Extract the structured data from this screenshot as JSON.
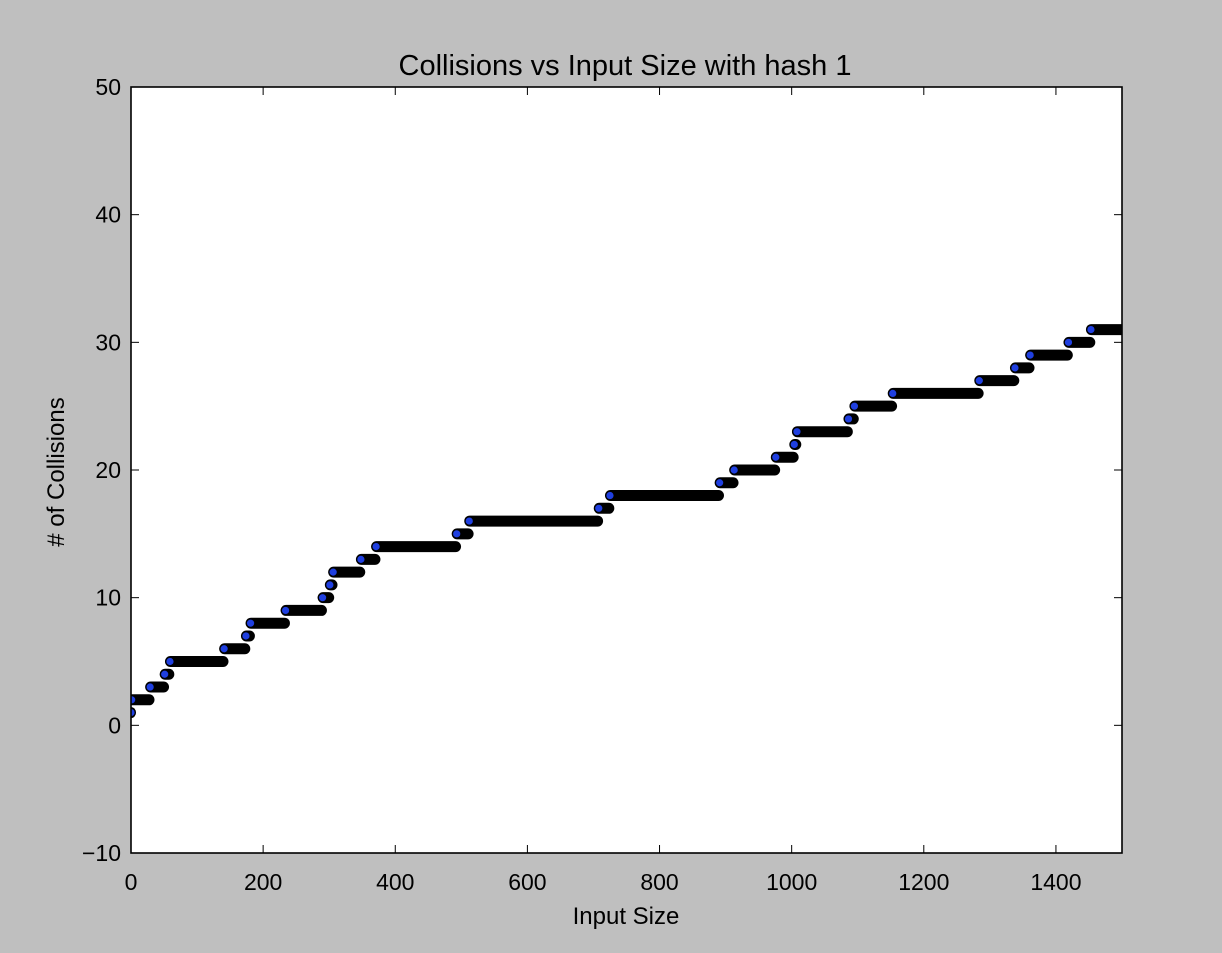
{
  "chart_data": {
    "type": "scatter",
    "title": "Collisions vs Input Size with hash 1",
    "xlabel": "Input Size",
    "ylabel": "# of Collisions",
    "xlim": [
      0,
      1500
    ],
    "ylim": [
      -10,
      50
    ],
    "xticks": [
      0,
      200,
      400,
      600,
      800,
      1000,
      1200,
      1400
    ],
    "yticks": [
      -10,
      0,
      10,
      20,
      30,
      40,
      50
    ],
    "grid": false,
    "legend": "none",
    "marker_color": "#1f3fe0",
    "marker_edge_color": "#000000",
    "background_color": "#bfbfbf",
    "plot_background_color": "#ffffff",
    "steps": [
      {
        "x_start": 0,
        "x_end": 0,
        "y": 1
      },
      {
        "x_start": 1,
        "x_end": 28,
        "y": 2
      },
      {
        "x_start": 29,
        "x_end": 50,
        "y": 3
      },
      {
        "x_start": 51,
        "x_end": 58,
        "y": 4
      },
      {
        "x_start": 59,
        "x_end": 140,
        "y": 5
      },
      {
        "x_start": 141,
        "x_end": 173,
        "y": 6
      },
      {
        "x_start": 174,
        "x_end": 180,
        "y": 7
      },
      {
        "x_start": 181,
        "x_end": 233,
        "y": 8
      },
      {
        "x_start": 234,
        "x_end": 289,
        "y": 9
      },
      {
        "x_start": 290,
        "x_end": 300,
        "y": 10
      },
      {
        "x_start": 301,
        "x_end": 305,
        "y": 11
      },
      {
        "x_start": 306,
        "x_end": 347,
        "y": 12
      },
      {
        "x_start": 348,
        "x_end": 370,
        "y": 13
      },
      {
        "x_start": 371,
        "x_end": 492,
        "y": 14
      },
      {
        "x_start": 493,
        "x_end": 511,
        "y": 15
      },
      {
        "x_start": 512,
        "x_end": 707,
        "y": 16
      },
      {
        "x_start": 708,
        "x_end": 724,
        "y": 17
      },
      {
        "x_start": 725,
        "x_end": 890,
        "y": 18
      },
      {
        "x_start": 891,
        "x_end": 912,
        "y": 19
      },
      {
        "x_start": 913,
        "x_end": 975,
        "y": 20
      },
      {
        "x_start": 976,
        "x_end": 1003,
        "y": 21
      },
      {
        "x_start": 1004,
        "x_end": 1007,
        "y": 22
      },
      {
        "x_start": 1008,
        "x_end": 1085,
        "y": 23
      },
      {
        "x_start": 1086,
        "x_end": 1094,
        "y": 24
      },
      {
        "x_start": 1095,
        "x_end": 1152,
        "y": 25
      },
      {
        "x_start": 1153,
        "x_end": 1283,
        "y": 26
      },
      {
        "x_start": 1284,
        "x_end": 1337,
        "y": 27
      },
      {
        "x_start": 1338,
        "x_end": 1360,
        "y": 28
      },
      {
        "x_start": 1361,
        "x_end": 1418,
        "y": 29
      },
      {
        "x_start": 1419,
        "x_end": 1452,
        "y": 30
      },
      {
        "x_start": 1453,
        "x_end": 1500,
        "y": 31
      }
    ]
  }
}
